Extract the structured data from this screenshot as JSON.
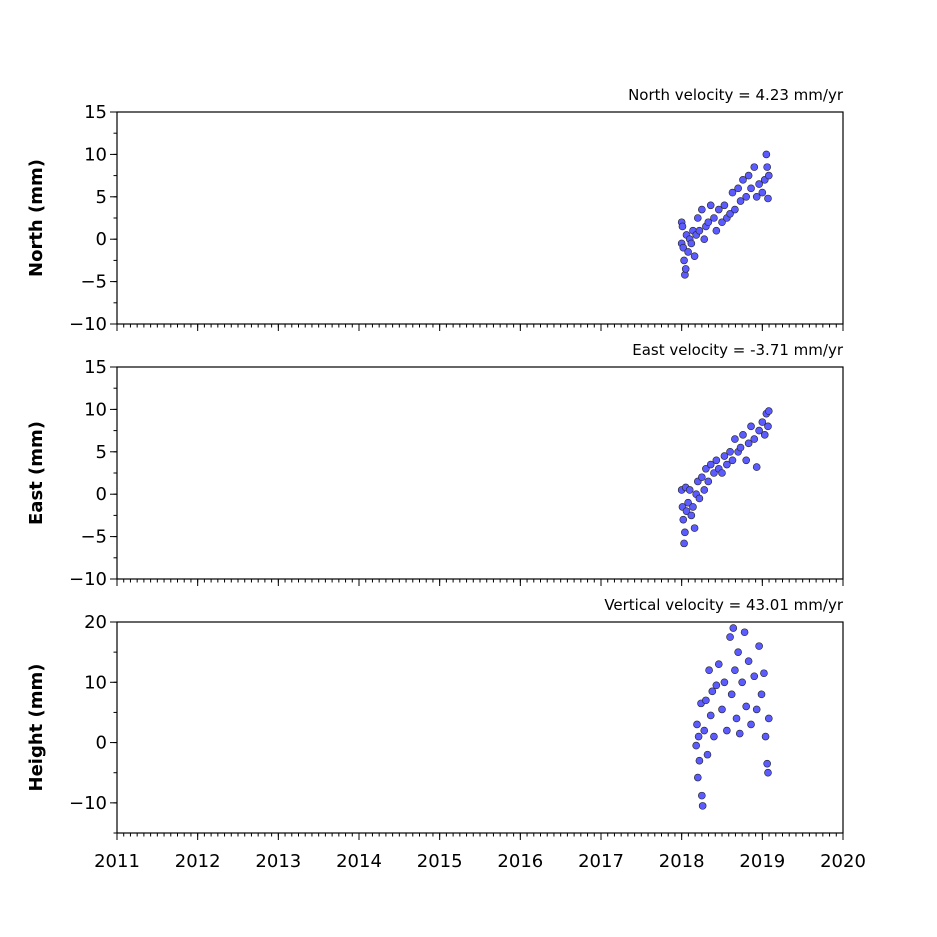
{
  "chart_data": [
    {
      "type": "scatter",
      "title": "North velocity = 4.23 mm/yr",
      "y_label": "North (mm)",
      "color": "#5b5bff",
      "x": [
        2018.0,
        2018.0,
        2018.01,
        2018.02,
        2018.03,
        2018.04,
        2018.05,
        2018.06,
        2018.08,
        2018.1,
        2018.12,
        2018.14,
        2018.16,
        2018.18,
        2018.2,
        2018.22,
        2018.25,
        2018.28,
        2018.3,
        2018.33,
        2018.36,
        2018.4,
        2018.43,
        2018.46,
        2018.5,
        2018.53,
        2018.56,
        2018.6,
        2018.63,
        2018.66,
        2018.7,
        2018.73,
        2018.76,
        2018.8,
        2018.83,
        2018.86,
        2018.9,
        2018.93,
        2018.96,
        2019.0,
        2019.03,
        2019.05,
        2019.06,
        2019.07,
        2019.08
      ],
      "values": [
        -0.5,
        2.0,
        1.5,
        -1,
        -2.5,
        -4.2,
        -3.5,
        0.5,
        -1.5,
        0,
        -0.5,
        1,
        -2,
        0.5,
        2.5,
        1,
        3.5,
        0,
        1.5,
        2,
        4,
        2.5,
        1,
        3.5,
        2,
        4,
        2.5,
        3,
        5.5,
        3.5,
        6,
        4.5,
        7,
        5,
        7.5,
        6,
        8.5,
        5,
        6.5,
        5.5,
        7,
        10,
        8.5,
        4.8,
        7.5
      ],
      "xlim": [
        2011,
        2020
      ],
      "xticks": [
        2011,
        2012,
        2013,
        2014,
        2015,
        2016,
        2017,
        2018,
        2019,
        2020
      ],
      "ylim": [
        -10,
        15
      ],
      "yticks": [
        {
          "value": -10,
          "label": "−10"
        },
        {
          "value": -5,
          "label": "−5"
        },
        0,
        5,
        10,
        15
      ]
    },
    {
      "type": "scatter",
      "title": "East velocity = -3.71 mm/yr",
      "y_label": "East (mm)",
      "color": "#5b5bff",
      "x": [
        2018.0,
        2018.01,
        2018.02,
        2018.03,
        2018.04,
        2018.05,
        2018.06,
        2018.08,
        2018.1,
        2018.12,
        2018.14,
        2018.16,
        2018.18,
        2018.2,
        2018.22,
        2018.25,
        2018.28,
        2018.3,
        2018.33,
        2018.36,
        2018.4,
        2018.43,
        2018.46,
        2018.5,
        2018.53,
        2018.56,
        2018.6,
        2018.63,
        2018.66,
        2018.7,
        2018.73,
        2018.76,
        2018.8,
        2018.83,
        2018.86,
        2018.9,
        2018.93,
        2018.96,
        2019.0,
        2019.03,
        2019.05,
        2019.07,
        2019.08
      ],
      "values": [
        0.5,
        -1.5,
        -3,
        -5.8,
        -4.5,
        0.8,
        -2,
        -1,
        0.5,
        -2.5,
        -1.5,
        -4,
        0,
        1.5,
        -0.5,
        2,
        0.5,
        3,
        1.5,
        3.5,
        2.5,
        4,
        3,
        2.5,
        4.5,
        3.5,
        5,
        4,
        6.5,
        5,
        5.5,
        7,
        4,
        6,
        8,
        6.5,
        3.2,
        7.5,
        8.5,
        7,
        9.5,
        8,
        9.8
      ],
      "xlim": [
        2011,
        2020
      ],
      "xticks": [
        2011,
        2012,
        2013,
        2014,
        2015,
        2016,
        2017,
        2018,
        2019,
        2020
      ],
      "ylim": [
        -10,
        15
      ],
      "yticks": [
        {
          "value": -10,
          "label": "−10"
        },
        {
          "value": -5,
          "label": "−5"
        },
        0,
        5,
        10,
        15
      ]
    },
    {
      "type": "scatter",
      "title": "Vertical velocity = 43.01 mm/yr",
      "y_label": "Height (mm)",
      "color": "#5b5bff",
      "x": [
        2018.18,
        2018.19,
        2018.2,
        2018.21,
        2018.22,
        2018.24,
        2018.25,
        2018.26,
        2018.28,
        2018.3,
        2018.32,
        2018.34,
        2018.36,
        2018.38,
        2018.4,
        2018.43,
        2018.46,
        2018.5,
        2018.53,
        2018.56,
        2018.6,
        2018.62,
        2018.64,
        2018.66,
        2018.68,
        2018.7,
        2018.72,
        2018.75,
        2018.78,
        2018.8,
        2018.83,
        2018.86,
        2018.9,
        2018.93,
        2018.96,
        2018.99,
        2019.02,
        2019.04,
        2019.06,
        2019.07,
        2019.08
      ],
      "values": [
        -0.5,
        3,
        -5.8,
        1,
        -3,
        6.5,
        -8.8,
        -10.5,
        2,
        7,
        -2,
        12,
        4.5,
        8.5,
        1,
        9.5,
        13,
        5.5,
        10,
        2,
        17.5,
        8,
        19,
        12,
        4,
        15,
        1.5,
        10,
        18.3,
        6,
        13.5,
        3,
        11,
        5.5,
        16,
        8,
        11.5,
        1,
        -3.5,
        -5,
        4
      ],
      "xlim": [
        2011,
        2020
      ],
      "xticks": [
        2011,
        2012,
        2013,
        2014,
        2015,
        2016,
        2017,
        2018,
        2019,
        2020
      ],
      "ylim": [
        -15,
        20
      ],
      "yticks": [
        {
          "value": -10,
          "label": "−10"
        },
        0,
        10,
        20
      ]
    }
  ]
}
